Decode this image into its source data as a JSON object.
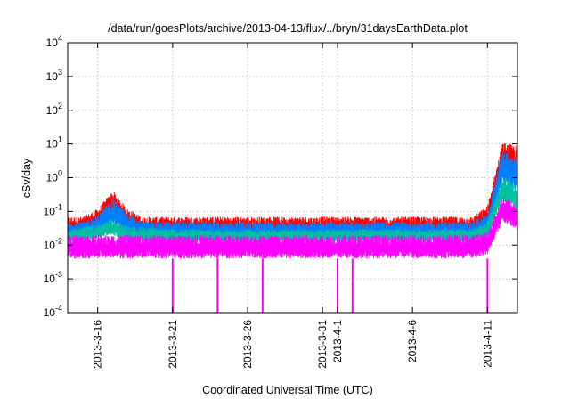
{
  "chart_data": {
    "type": "line",
    "title": "/data/run/goesPlots/archive/2013-04-13/flux/../bryn/31daysEarthData.plot",
    "xlabel": "Coordinated Universal Time (UTC)",
    "ylabel": "cSv/day",
    "y_scale": "log",
    "ylim": [
      0.0001,
      10000
    ],
    "xlim": [
      "2013-03-14",
      "2013-04-13"
    ],
    "grid": true,
    "legend": "none",
    "x_tick_labels": [
      "2013-3-16",
      "2013-3-21",
      "2013-3-26",
      "2013-3-31",
      "2013-4-1",
      "2013-4-6",
      "2013-4-11"
    ],
    "x_tick_dates": [
      "2013-03-16",
      "2013-03-21",
      "2013-03-26",
      "2013-03-31",
      "2013-04-01",
      "2013-04-06",
      "2013-04-11"
    ],
    "y_ticks": [
      {
        "base": "10",
        "exp": "-4",
        "value": 0.0001
      },
      {
        "base": "10",
        "exp": "-3",
        "value": 0.001
      },
      {
        "base": "10",
        "exp": "-2",
        "value": 0.01
      },
      {
        "base": "10",
        "exp": "-1",
        "value": 0.1
      },
      {
        "base": "10",
        "exp": "0",
        "value": 1
      },
      {
        "base": "10",
        "exp": "1",
        "value": 10
      },
      {
        "base": "10",
        "exp": "2",
        "value": 100
      },
      {
        "base": "10",
        "exp": "3",
        "value": 1000
      },
      {
        "base": "10",
        "exp": "4",
        "value": 10000
      }
    ],
    "series": [
      {
        "color": "#ff0000",
        "x": [
          "2013-03-14",
          "2013-03-15",
          "2013-03-16",
          "2013-03-17",
          "2013-03-18",
          "2013-03-19",
          "2013-03-21",
          "2013-03-24",
          "2013-03-27",
          "2013-03-30",
          "2013-04-02",
          "2013-04-05",
          "2013-04-08",
          "2013-04-10",
          "2013-04-11",
          "2013-04-12",
          "2013-04-13"
        ],
        "lower": [
          0.02,
          0.02,
          0.03,
          0.06,
          0.03,
          0.02,
          0.02,
          0.02,
          0.02,
          0.02,
          0.02,
          0.02,
          0.02,
          0.02,
          0.03,
          2,
          1
        ],
        "upper": [
          0.07,
          0.07,
          0.12,
          0.42,
          0.12,
          0.07,
          0.07,
          0.07,
          0.07,
          0.07,
          0.07,
          0.07,
          0.07,
          0.07,
          0.15,
          11,
          9
        ]
      },
      {
        "color": "#0080ff",
        "x": [
          "2013-03-14",
          "2013-03-15",
          "2013-03-16",
          "2013-03-17",
          "2013-03-18",
          "2013-03-19",
          "2013-03-21",
          "2013-03-24",
          "2013-03-27",
          "2013-03-30",
          "2013-04-02",
          "2013-04-05",
          "2013-04-08",
          "2013-04-10",
          "2013-04-11",
          "2013-04-12",
          "2013-04-13"
        ],
        "lower": [
          0.015,
          0.015,
          0.02,
          0.04,
          0.02,
          0.015,
          0.015,
          0.015,
          0.015,
          0.015,
          0.015,
          0.015,
          0.015,
          0.015,
          0.02,
          0.8,
          0.4
        ],
        "upper": [
          0.05,
          0.05,
          0.08,
          0.25,
          0.08,
          0.05,
          0.05,
          0.05,
          0.05,
          0.05,
          0.05,
          0.05,
          0.05,
          0.05,
          0.09,
          6,
          4
        ]
      },
      {
        "color": "#00c0a0",
        "x": [
          "2013-03-14",
          "2013-03-16",
          "2013-03-17",
          "2013-03-18",
          "2013-03-21",
          "2013-03-26",
          "2013-03-31",
          "2013-04-05",
          "2013-04-10",
          "2013-04-11",
          "2013-04-12",
          "2013-04-13"
        ],
        "lower": [
          0.012,
          0.015,
          0.02,
          0.013,
          0.012,
          0.012,
          0.012,
          0.012,
          0.012,
          0.015,
          0.2,
          0.1
        ],
        "upper": [
          0.03,
          0.04,
          0.06,
          0.035,
          0.03,
          0.03,
          0.03,
          0.03,
          0.03,
          0.05,
          1.2,
          0.6
        ]
      },
      {
        "color": "#ff00ff",
        "x": [
          "2013-03-14",
          "2013-03-16",
          "2013-03-18",
          "2013-03-21",
          "2013-03-24",
          "2013-03-27",
          "2013-03-30",
          "2013-04-02",
          "2013-04-05",
          "2013-04-08",
          "2013-04-10",
          "2013-04-11",
          "2013-04-12",
          "2013-04-13"
        ],
        "lower": [
          0.004,
          0.004,
          0.004,
          0.004,
          0.004,
          0.004,
          0.004,
          0.004,
          0.004,
          0.004,
          0.004,
          0.005,
          0.05,
          0.03
        ],
        "upper": [
          0.02,
          0.02,
          0.02,
          0.02,
          0.02,
          0.02,
          0.02,
          0.02,
          0.02,
          0.02,
          0.02,
          0.025,
          0.3,
          0.15
        ]
      }
    ],
    "dropouts": {
      "color": "#ff00ff",
      "x": [
        "2013-03-21",
        "2013-03-24",
        "2013-03-27",
        "2013-04-01",
        "2013-04-02",
        "2013-04-11"
      ],
      "top": 0.004,
      "bottom": 0.0001
    }
  }
}
